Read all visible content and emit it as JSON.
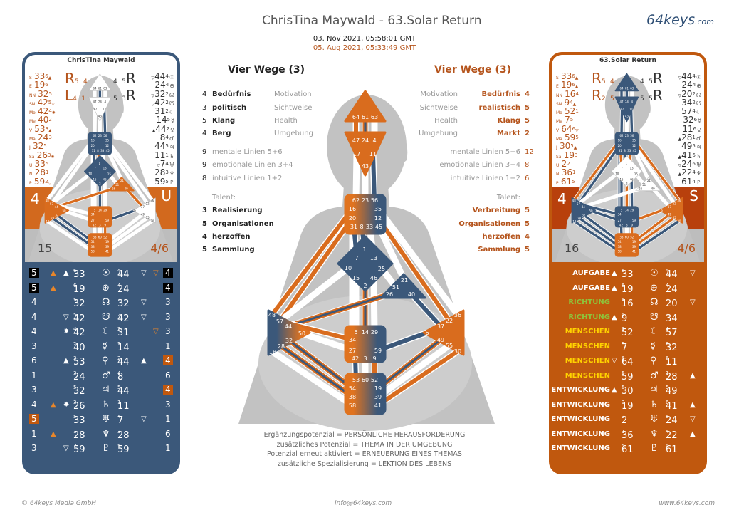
{
  "header": {
    "title": "ChrisTina Maywald -  63.Solar Return",
    "brand": "64keys",
    "brand_suffix": ".com",
    "date_personality": "03. Nov 2021, 05:58:01 GMT",
    "date_design": "05. Aug 2021, 05:33:49 GMT"
  },
  "colors": {
    "orange": "#d96c1e",
    "blue": "#3b587a",
    "brown_text": "#b5541c",
    "panel_orange": "#c0580e"
  },
  "left_panel": {
    "name": "ChrisTina Maywald",
    "band_color": "#d2691e",
    "type_letter": "U",
    "profile_left": "4",
    "definition": "15",
    "profile": "4/6",
    "r_marks": [
      {
        "letter": "R",
        "a": "5",
        "b": "4"
      },
      {
        "letter": "L",
        "a": "4",
        "b": "1"
      }
    ],
    "r_marks_right": [
      {
        "letter": "R",
        "a": "5",
        "b": "4"
      },
      {
        "letter": "R",
        "a": "5",
        "b": "3"
      }
    ],
    "design": [
      [
        "S",
        "33",
        "6",
        "▲"
      ],
      [
        "E",
        "19",
        "6",
        ""
      ],
      [
        "NN",
        "32",
        "5",
        ""
      ],
      [
        "SN",
        "42",
        "5",
        "▽"
      ],
      [
        "Mo",
        "42",
        "4",
        "✸"
      ],
      [
        "Me",
        "40",
        "2",
        ""
      ],
      [
        "V",
        "53",
        "3",
        "▲"
      ],
      [
        "Ma",
        "24",
        "3",
        ""
      ],
      [
        "J",
        "32",
        "5",
        ""
      ],
      [
        "Sa",
        "26",
        "3",
        "✸"
      ],
      [
        "U",
        "33",
        "5",
        ""
      ],
      [
        "N",
        "28",
        "1",
        ""
      ],
      [
        "P",
        "59",
        "2",
        "▽"
      ]
    ],
    "personality": [
      [
        "▽",
        "44",
        "4",
        "☉"
      ],
      [
        "",
        "24",
        "4",
        "⊕"
      ],
      [
        "▽",
        "32",
        "2",
        "☊"
      ],
      [
        "▽",
        "42",
        "2",
        "☋"
      ],
      [
        "",
        "31",
        "2",
        "☾"
      ],
      [
        "",
        "14",
        "5",
        "☿"
      ],
      [
        "▲",
        "44",
        "2",
        "♀"
      ],
      [
        "",
        "8",
        "4",
        "♂"
      ],
      [
        "",
        "44",
        "5",
        "♃"
      ],
      [
        "",
        "11",
        "1",
        "♄"
      ],
      [
        "▽",
        "7",
        "4",
        "♅"
      ],
      [
        "",
        "28",
        "3",
        "♆"
      ],
      [
        "",
        "59",
        "5",
        "♇"
      ]
    ],
    "table": [
      {
        "ln": "5",
        "lh": "black",
        "ot": "▲",
        "wm": "▲",
        "g1": "33",
        "l1": "6",
        "sym": "☉",
        "g2": "44",
        "l2": "4",
        "m2": "▽",
        "om": "▽",
        "rn": "4",
        "rh": "black"
      },
      {
        "ln": "5",
        "lh": "black",
        "ot": "▲",
        "wm": "",
        "g1": "19",
        "l1": "6",
        "sym": "⊕",
        "g2": "24",
        "l2": "4",
        "m2": "",
        "om": "",
        "rn": "4",
        "rh": "black"
      },
      {
        "ln": "4",
        "lh": "",
        "ot": "",
        "wm": "",
        "g1": "32",
        "l1": "5",
        "sym": "☊",
        "g2": "32",
        "l2": "2",
        "m2": "▽",
        "om": "",
        "rn": "3",
        "rh": ""
      },
      {
        "ln": "4",
        "lh": "",
        "ot": "",
        "wm": "▽",
        "g1": "42",
        "l1": "5",
        "sym": "☋",
        "g2": "42",
        "l2": "2",
        "m2": "▽",
        "om": "",
        "rn": "3",
        "rh": ""
      },
      {
        "ln": "4",
        "lh": "",
        "ot": "",
        "wm": "✸",
        "g1": "42",
        "l1": "4",
        "sym": "☾",
        "g2": "31",
        "l2": "2",
        "m2": "",
        "om": "▽",
        "rn": "3",
        "rh": ""
      },
      {
        "ln": "3",
        "lh": "",
        "ot": "",
        "wm": "",
        "g1": "40",
        "l1": "2",
        "sym": "☿",
        "g2": "14",
        "l2": "5",
        "m2": "",
        "om": "",
        "rn": "1",
        "rh": ""
      },
      {
        "ln": "6",
        "lh": "",
        "ot": "",
        "wm": "▲",
        "g1": "53",
        "l1": "3",
        "sym": "♀",
        "g2": "44",
        "l2": "2",
        "m2": "▲",
        "om": "",
        "rn": "4",
        "rh": "orange"
      },
      {
        "ln": "1",
        "lh": "",
        "ot": "",
        "wm": "",
        "g1": "24",
        "l1": "3",
        "sym": "♂",
        "g2": "8",
        "l2": "4",
        "m2": "",
        "om": "",
        "rn": "6",
        "rh": ""
      },
      {
        "ln": "3",
        "lh": "",
        "ot": "",
        "wm": "",
        "g1": "32",
        "l1": "5",
        "sym": "♃",
        "g2": "44",
        "l2": "5",
        "m2": "",
        "om": "",
        "rn": "4",
        "rh": "orange"
      },
      {
        "ln": "4",
        "lh": "",
        "ot": "▲",
        "wm": "✸",
        "g1": "26",
        "l1": "3",
        "sym": "♄",
        "g2": "11",
        "l2": "1",
        "m2": "",
        "om": "",
        "rn": "3",
        "rh": ""
      },
      {
        "ln": "5",
        "lh": "orange",
        "ot": "",
        "wm": "",
        "g1": "33",
        "l1": "5",
        "sym": "♅",
        "g2": "7",
        "l2": "4",
        "m2": "▽",
        "om": "",
        "rn": "1",
        "rh": ""
      },
      {
        "ln": "1",
        "lh": "",
        "ot": "▲",
        "wm": "",
        "g1": "28",
        "l1": "1",
        "sym": "♆",
        "g2": "28",
        "l2": "3",
        "m2": "",
        "om": "",
        "rn": "6",
        "rh": ""
      },
      {
        "ln": "3",
        "lh": "",
        "ot": "",
        "wm": "▽",
        "g1": "59",
        "l1": "2",
        "sym": "♇",
        "g2": "59",
        "l2": "5",
        "m2": "",
        "om": "",
        "rn": "1",
        "rh": ""
      }
    ]
  },
  "right_panel": {
    "name": "63.Solar Return",
    "band_color": "#b8400c",
    "type_letter": "S",
    "profile_left": "4",
    "definition": "16",
    "profile": "4/6",
    "r_marks": [
      {
        "letter": "R",
        "a": "5",
        "b": "4"
      },
      {
        "letter": "R",
        "a": "2",
        "b": "5"
      }
    ],
    "r_marks_right": [
      {
        "letter": "R",
        "a": "5",
        "b": "4"
      },
      {
        "letter": "R",
        "a": "5",
        "b": "5"
      }
    ],
    "design": [
      [
        "S",
        "33",
        "6",
        "▲"
      ],
      [
        "E",
        "19",
        "6",
        "▲"
      ],
      [
        "NN",
        "16",
        "4",
        ""
      ],
      [
        "SN",
        "9",
        "4",
        "▲"
      ],
      [
        "Mo",
        "52",
        "1",
        ""
      ],
      [
        "Me",
        "7",
        "5",
        ""
      ],
      [
        "V",
        "64",
        "6",
        "▽"
      ],
      [
        "Ma",
        "59",
        "5",
        ""
      ],
      [
        "J",
        "30",
        "5",
        "▲"
      ],
      [
        "Sa",
        "19",
        "3",
        ""
      ],
      [
        "U",
        "2",
        "2",
        ""
      ],
      [
        "N",
        "36",
        "1",
        ""
      ],
      [
        "P",
        "61",
        "5",
        ""
      ]
    ],
    "personality": [
      [
        "▽",
        "44",
        "4",
        "☉"
      ],
      [
        "",
        "24",
        "4",
        "⊕"
      ],
      [
        "▽",
        "20",
        "2",
        "☊"
      ],
      [
        "",
        "34",
        "2",
        "☋"
      ],
      [
        "",
        "57",
        "4",
        "☾"
      ],
      [
        "",
        "32",
        "6",
        "☿"
      ],
      [
        "",
        "11",
        "6",
        "♀"
      ],
      [
        "▲",
        "28",
        "1",
        "♂"
      ],
      [
        "",
        "49",
        "5",
        "♃"
      ],
      [
        "▲",
        "41",
        "6",
        "♄"
      ],
      [
        "▽",
        "24",
        "6",
        "♅"
      ],
      [
        "▲",
        "22",
        "4",
        "♆"
      ],
      [
        "",
        "61",
        "4",
        "♇"
      ]
    ],
    "table": [
      {
        "label": "AUFGABE",
        "lc": "#ffffff",
        "m1": "▲",
        "g1": "33",
        "l1": "6",
        "sym": "☉",
        "g2": "44",
        "l2": "4",
        "m2": "▽"
      },
      {
        "label": "AUFGABE",
        "lc": "#ffffff",
        "m1": "▲",
        "g1": "19",
        "l1": "6",
        "sym": "⊕",
        "g2": "24",
        "l2": "4",
        "m2": ""
      },
      {
        "label": "RICHTUNG",
        "lc": "#8fc23a",
        "m1": "",
        "g1": "16",
        "l1": "4",
        "sym": "☊",
        "g2": "20",
        "l2": "2",
        "m2": "▽"
      },
      {
        "label": "RICHTUNG",
        "lc": "#8fc23a",
        "m1": "▲",
        "g1": "9",
        "l1": "4",
        "sym": "☋",
        "g2": "34",
        "l2": "2",
        "m2": ""
      },
      {
        "label": "MENSCHEN",
        "lc": "#ffd200",
        "m1": "",
        "g1": "52",
        "l1": "1",
        "sym": "☾",
        "g2": "57",
        "l2": "4",
        "m2": ""
      },
      {
        "label": "MENSCHEN",
        "lc": "#ffd200",
        "m1": "",
        "g1": "7",
        "l1": "5",
        "sym": "☿",
        "g2": "32",
        "l2": "6",
        "m2": ""
      },
      {
        "label": "MENSCHEN",
        "lc": "#ffd200",
        "m1": "▽",
        "g1": "64",
        "l1": "6",
        "sym": "♀",
        "g2": "11",
        "l2": "6",
        "m2": ""
      },
      {
        "label": "MENSCHEN",
        "lc": "#ffd200",
        "m1": "",
        "g1": "59",
        "l1": "5",
        "sym": "♂",
        "g2": "28",
        "l2": "1",
        "m2": "▲"
      },
      {
        "label": "ENTWICKLUNG",
        "lc": "#ffffff",
        "m1": "▲",
        "g1": "30",
        "l1": "5",
        "sym": "♃",
        "g2": "49",
        "l2": "5",
        "m2": ""
      },
      {
        "label": "ENTWICKLUNG",
        "lc": "#ffffff",
        "m1": "",
        "g1": "19",
        "l1": "3",
        "sym": "♄",
        "g2": "41",
        "l2": "6",
        "m2": "▲"
      },
      {
        "label": "ENTWICKLUNG",
        "lc": "#ffffff",
        "m1": "",
        "g1": "2",
        "l1": "2",
        "sym": "♅",
        "g2": "24",
        "l2": "6",
        "m2": "▽"
      },
      {
        "label": "ENTWICKLUNG",
        "lc": "#ffffff",
        "m1": "",
        "g1": "36",
        "l1": "1",
        "sym": "♆",
        "g2": "22",
        "l2": "4",
        "m2": "▲"
      },
      {
        "label": "ENTWICKLUNG",
        "lc": "#ffffff",
        "m1": "",
        "g1": "61",
        "l1": "5",
        "sym": "♇",
        "g2": "61",
        "l2": "4",
        "m2": ""
      }
    ]
  },
  "left_info": {
    "heading": "Vier Wege (3)",
    "ways": [
      {
        "n": "4",
        "v": "Bedürfnis",
        "k": "Motivation"
      },
      {
        "n": "3",
        "v": "politisch",
        "k": "Sichtweise"
      },
      {
        "n": "5",
        "v": "Klang",
        "k": "Health"
      },
      {
        "n": "4",
        "v": "Berg",
        "k": "Umgebung"
      }
    ],
    "lines": [
      {
        "n": "9",
        "t": "mentale Linien 5+6"
      },
      {
        "n": "9",
        "t": "emotionale Linien 3+4"
      },
      {
        "n": "8",
        "t": "intuitive Linien 1+2"
      }
    ],
    "talent_label": "Talent:",
    "talents": [
      {
        "n": "3",
        "t": "Realisierung"
      },
      {
        "n": "5",
        "t": "Organisationen"
      },
      {
        "n": "4",
        "t": "herzoffen"
      },
      {
        "n": "5",
        "t": "Sammlung"
      }
    ]
  },
  "right_info": {
    "heading": "Vier Wege (3)",
    "ways": [
      {
        "n": "4",
        "v": "Bedürfnis",
        "k": "Motivation"
      },
      {
        "n": "5",
        "v": "realistisch",
        "k": "Sichtweise"
      },
      {
        "n": "5",
        "v": "Klang",
        "k": "Health"
      },
      {
        "n": "2",
        "v": "Markt",
        "k": "Umgebung"
      }
    ],
    "lines": [
      {
        "n": "12",
        "t": "mentale Linien 5+6"
      },
      {
        "n": "8",
        "t": "emotionale Linien 3+4"
      },
      {
        "n": "6",
        "t": "intuitive Linien 1+2"
      }
    ],
    "talent_label": "Talent:",
    "talents": [
      {
        "n": "5",
        "t": "Verbreitung"
      },
      {
        "n": "5",
        "t": "Organisationen"
      },
      {
        "n": "4",
        "t": "herzoffen"
      },
      {
        "n": "5",
        "t": "Sammlung"
      }
    ]
  },
  "bodygraph": {
    "centers": {
      "head": [
        "64",
        "61",
        "63"
      ],
      "ajna": [
        "47",
        "24",
        "4",
        "17",
        "11",
        "43"
      ],
      "throat": [
        "62",
        "23",
        "56",
        "16",
        "35",
        "20",
        "12",
        "31",
        "8",
        "33",
        "45"
      ],
      "g": [
        "1",
        "7",
        "13",
        "10",
        "25",
        "15",
        "46",
        "2"
      ],
      "ego": [
        "21",
        "51",
        "26",
        "40"
      ],
      "spleen": [
        "48",
        "57",
        "44",
        "50",
        "32",
        "28",
        "18"
      ],
      "sacral": [
        "5",
        "14",
        "29",
        "34",
        "27",
        "59",
        "42",
        "3",
        "9"
      ],
      "root": [
        "53",
        "60",
        "52",
        "54",
        "19",
        "38",
        "39",
        "58",
        "41"
      ],
      "solar_plexus": [
        "36",
        "22",
        "37",
        "6",
        "49",
        "55",
        "30"
      ]
    },
    "channels": [
      [
        "64",
        "47"
      ],
      [
        "61",
        "24"
      ],
      [
        "63",
        "4"
      ],
      [
        "17",
        "62"
      ],
      [
        "43",
        "23"
      ],
      [
        "11",
        "56"
      ],
      [
        "16",
        "48"
      ],
      [
        "20",
        "57"
      ],
      [
        "20",
        "34"
      ],
      [
        "35",
        "36"
      ],
      [
        "12",
        "22"
      ],
      [
        "45",
        "21"
      ],
      [
        "31",
        "7"
      ],
      [
        "8",
        "1"
      ],
      [
        "33",
        "13"
      ],
      [
        "10",
        "57"
      ],
      [
        "2",
        "14"
      ],
      [
        "15",
        "5"
      ],
      [
        "46",
        "29"
      ],
      [
        "25",
        "51"
      ],
      [
        "26",
        "44"
      ],
      [
        "40",
        "37"
      ],
      [
        "50",
        "27"
      ],
      [
        "59",
        "6"
      ],
      [
        "34",
        "57"
      ],
      [
        "42",
        "53"
      ],
      [
        "3",
        "60"
      ],
      [
        "9",
        "52"
      ],
      [
        "18",
        "58"
      ],
      [
        "28",
        "38"
      ],
      [
        "32",
        "54"
      ],
      [
        "19",
        "49"
      ],
      [
        "39",
        "55"
      ],
      [
        "41",
        "30"
      ]
    ],
    "main": {
      "centers": {
        "head": "o",
        "ajna": "o",
        "throat": "ob",
        "g": "b",
        "ego": "b",
        "spleen": "bo",
        "sacral": "ob",
        "root": "ob",
        "solar_plexus": "o"
      },
      "channels": [
        "o",
        "ob",
        "w",
        "w",
        "w",
        "b",
        "o",
        "o",
        "w",
        "w",
        "o",
        "w",
        "b",
        "b",
        "w",
        "w",
        "ob",
        "w",
        "w",
        "w",
        "ob",
        "b",
        "w",
        "b",
        "o",
        "b",
        "w",
        "o",
        "w",
        "ob",
        "ob",
        "ob",
        "w",
        "o"
      ]
    },
    "left": {
      "centers": {
        "head": "w",
        "ajna": "w",
        "throat": "b",
        "g": "b",
        "ego": "o",
        "spleen": "o",
        "sacral": "o",
        "root": "o",
        "solar_plexus": "w"
      },
      "channels": [
        "w",
        "b",
        "w",
        "w",
        "w",
        "b",
        "w",
        "w",
        "w",
        "w",
        "w",
        "w",
        "b",
        "o",
        "w",
        "w",
        "b",
        "w",
        "w",
        "w",
        "o",
        "o",
        "w",
        "b",
        "w",
        "w",
        "w",
        "o",
        "w",
        "b",
        "b",
        "w",
        "w",
        "w"
      ]
    },
    "right": {
      "centers": {
        "head": "b",
        "ajna": "b",
        "throat": "b",
        "g": "w",
        "ego": "w",
        "spleen": "b",
        "sacral": "b",
        "root": "o",
        "solar_plexus": "o"
      },
      "channels": [
        "b",
        "b",
        "w",
        "b",
        "w",
        "b",
        "o",
        "b",
        "b",
        "o",
        "w",
        "w",
        "o",
        "b",
        "o",
        "w",
        "o",
        "b",
        "b",
        "w",
        "w",
        "w",
        "b",
        "o",
        "b",
        "b",
        "w",
        "o",
        "b",
        "b",
        "b",
        "o",
        "o",
        "b"
      ]
    }
  },
  "legend": [
    "Ergänzungspotenzial = PERSÖNLICHE HERAUSFORDERUNG",
    "zusätzliches Potenzial = THEMA IN DER UMGEBUNG",
    "Potenzial erneut aktiviert = ERNEUERUNG EINES THEMAS",
    "zusätzliche Spezialisierung = LEKTION DES LEBENS"
  ],
  "footer": {
    "copyright": "© 64keys Media GmbH",
    "email": "info@64keys.com",
    "website": "www.64keys.com"
  }
}
